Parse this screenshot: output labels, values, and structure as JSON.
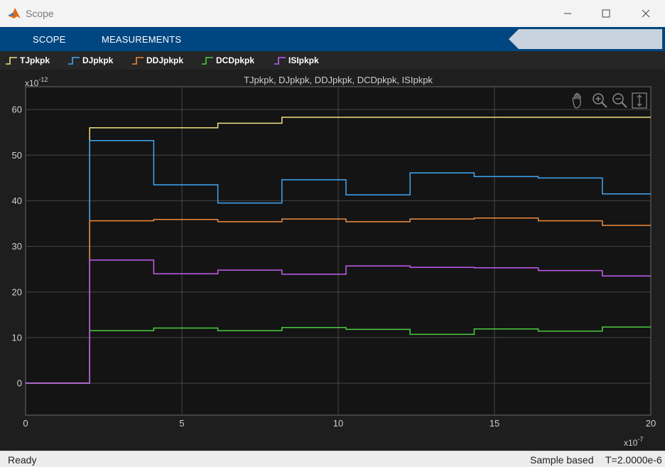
{
  "window": {
    "title": "Scope",
    "controls": [
      "minimize",
      "maximize",
      "close"
    ]
  },
  "toolstrip": {
    "tabs": [
      "SCOPE",
      "MEASUREMENTS"
    ],
    "buttons": [
      "settings-icon",
      "run-icon",
      "step-forward-icon",
      "stop-icon",
      "help-icon",
      "undock-icon"
    ]
  },
  "legend": [
    {
      "name": "TJpkpk",
      "color": "#f0e080"
    },
    {
      "name": "DJpkpk",
      "color": "#3fa7f5"
    },
    {
      "name": "DDJpkpk",
      "color": "#f08a3c"
    },
    {
      "name": "DCDpkpk",
      "color": "#4ccc40"
    },
    {
      "name": "ISIpkpk",
      "color": "#c45cf0"
    }
  ],
  "axes_toolbar": [
    "pan-icon",
    "zoom-in-icon",
    "zoom-out-icon",
    "autoscale-icon"
  ],
  "status": {
    "left": "Ready",
    "mode": "Sample based",
    "time": "T=2.0000e-6"
  },
  "chart_data": {
    "type": "line",
    "title": "TJpkpk, DJpkpk, DDJpkpk, DCDpkpk, ISIpkpk",
    "x_multiplier": "x10",
    "x_exponent": "-7",
    "y_multiplier": "x10",
    "y_exponent": "-12",
    "xlim": [
      0,
      20
    ],
    "ylim": [
      -7,
      65
    ],
    "xticks": [
      0,
      5,
      10,
      15,
      20
    ],
    "yticks": [
      0,
      10,
      20,
      30,
      40,
      50,
      60
    ],
    "grid": true,
    "step": true,
    "series": [
      {
        "name": "TJpkpk",
        "color": "#f0e080",
        "x": [
          0,
          2.05,
          2.05,
          6.15,
          8.2,
          20
        ],
        "y": [
          0,
          0,
          56,
          57,
          58.3,
          58.3
        ]
      },
      {
        "name": "DJpkpk",
        "color": "#3fa7f5",
        "x": [
          0,
          2.05,
          2.05,
          4.1,
          6.15,
          8.2,
          10.25,
          12.3,
          14.35,
          16.4,
          18.45,
          20
        ],
        "y": [
          0,
          0,
          53.2,
          43.5,
          39.5,
          44.6,
          41.3,
          46.1,
          45.3,
          45.0,
          41.5,
          41.5
        ]
      },
      {
        "name": "DDJpkpk",
        "color": "#f08a3c",
        "x": [
          0,
          2.05,
          2.05,
          4.1,
          6.15,
          8.2,
          10.25,
          12.3,
          14.35,
          16.4,
          18.45,
          20
        ],
        "y": [
          0,
          0,
          35.6,
          35.9,
          35.4,
          36.0,
          35.4,
          36.0,
          36.2,
          35.6,
          34.6,
          34.6
        ]
      },
      {
        "name": "DCDpkpk",
        "color": "#4ccc40",
        "x": [
          0,
          2.05,
          2.05,
          4.1,
          6.15,
          8.2,
          10.25,
          12.3,
          14.35,
          16.4,
          18.45,
          20
        ],
        "y": [
          0,
          0,
          11.5,
          12.1,
          11.5,
          12.2,
          11.8,
          10.7,
          11.9,
          11.4,
          12.3,
          12.3
        ]
      },
      {
        "name": "ISIpkpk",
        "color": "#c45cf0",
        "x": [
          0,
          2.05,
          2.05,
          4.1,
          6.15,
          8.2,
          10.25,
          12.3,
          14.35,
          16.4,
          18.45,
          20
        ],
        "y": [
          0,
          0,
          27.0,
          24.0,
          24.8,
          23.9,
          25.7,
          25.4,
          25.3,
          24.7,
          23.5,
          23.5
        ]
      }
    ]
  }
}
